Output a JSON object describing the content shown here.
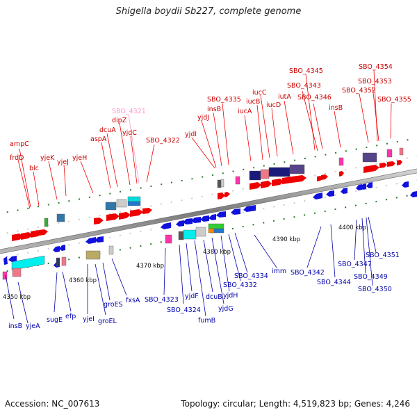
{
  "title": "Shigella boydii Sb227, complete genome",
  "accession": "Accession: NC_007613",
  "topology": "Topology: circular; Length: 4,519,823 bp; Genes: 4,246",
  "scale_labels": [
    "4350 kbp",
    "4360 kbp",
    "4370 kbp",
    "4380 kbp",
    "4390 kbp",
    "4400 kbp"
  ],
  "colors": {
    "forward_label": "#cc0000",
    "reverse_label": "#0000aa",
    "highlight_label": "#ff99cc",
    "forward_gene": "#ee0000",
    "reverse_gene": "#1111dd",
    "backbone": "#999999",
    "tick": "#2a7a2a"
  },
  "forward_genes": [
    "ampC",
    "frdD",
    "blc",
    "yjeK",
    "yjeJ",
    "yjeH",
    "aspA",
    "dcuA",
    "dipZ",
    "SBO_4321",
    "yjdC",
    "SBO_4322",
    "yjdI",
    "yjdJ",
    "insB",
    "SBO_4335",
    "iucA",
    "iucB",
    "iucC",
    "iucD",
    "iutA",
    "SBO_4343",
    "SBO_4345",
    "SBO_4346",
    "insB",
    "SBO_4352",
    "SBO_4353",
    "SBO_4354",
    "SBO_4355"
  ],
  "reverse_genes": [
    "insB",
    "yjeA",
    "sugE",
    "efp",
    "yjeI",
    "groEL",
    "groES",
    "fxsA",
    "SBO_4323",
    "SBO_4324",
    "yjdF",
    "fumB",
    "dcuB",
    "yjdG",
    "yjdH",
    "SBO_4332",
    "SBO_4334",
    "imm",
    "SBO_4342",
    "SBO_4344",
    "SBO_4347",
    "SBO_4349",
    "SBO_4350",
    "SBO_4351"
  ]
}
